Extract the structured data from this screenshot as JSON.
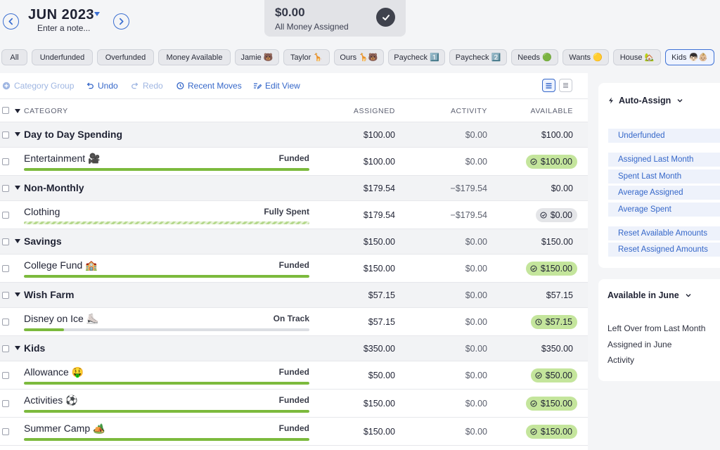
{
  "header": {
    "month_title": "JUN 2023",
    "note_placeholder": "Enter a note...",
    "assigned_amount": "$0.00",
    "assigned_label": "All Money Assigned"
  },
  "filters": [
    {
      "label": "All"
    },
    {
      "label": "Underfunded"
    },
    {
      "label": "Overfunded"
    },
    {
      "label": "Money Available"
    },
    {
      "label": "Jamie 🐻"
    },
    {
      "label": "Taylor 🦒"
    },
    {
      "label": "Ours 🦒🐻"
    },
    {
      "label": "Paycheck 1️⃣"
    },
    {
      "label": "Paycheck 2️⃣"
    },
    {
      "label": "Needs 🟢"
    },
    {
      "label": "Wants 🟡"
    },
    {
      "label": "House 🏡"
    },
    {
      "label": "Kids 👦🏻👶🏼"
    }
  ],
  "toolbar": {
    "category_group": "Category Group",
    "undo": "Undo",
    "redo": "Redo",
    "recent_moves": "Recent Moves",
    "edit_view": "Edit View"
  },
  "columns": {
    "category": "CATEGORY",
    "assigned": "ASSIGNED",
    "activity": "ACTIVITY",
    "available": "AVAILABLE"
  },
  "budget_rows": [
    {
      "type": "group",
      "name": "Day to Day Spending",
      "assigned": "$100.00",
      "activity": "$0.00",
      "available": "$100.00"
    },
    {
      "type": "category",
      "name": "Entertainment 🎥",
      "status": "Funded",
      "progress": 1.0,
      "assigned": "$100.00",
      "activity": "$0.00",
      "available": "$100.00",
      "pill": "green"
    },
    {
      "type": "group",
      "name": "Non-Monthly",
      "assigned": "$179.54",
      "activity": "−$179.54",
      "available": "$0.00"
    },
    {
      "type": "category",
      "name": "Clothing",
      "status": "Fully Spent",
      "progress": 1.0,
      "striped": true,
      "assigned": "$179.54",
      "activity": "−$179.54",
      "available": "$0.00",
      "pill": "gray"
    },
    {
      "type": "group",
      "name": "Savings",
      "assigned": "$150.00",
      "activity": "$0.00",
      "available": "$150.00"
    },
    {
      "type": "category",
      "name": "College Fund 🏫",
      "status": "Funded",
      "progress": 1.0,
      "assigned": "$150.00",
      "activity": "$0.00",
      "available": "$150.00",
      "pill": "green"
    },
    {
      "type": "group",
      "name": "Wish Farm",
      "assigned": "$57.15",
      "activity": "$0.00",
      "available": "$57.15"
    },
    {
      "type": "category",
      "name": "Disney on Ice ⛸️",
      "status": "On Track",
      "progress": 0.14,
      "assigned": "$57.15",
      "activity": "$0.00",
      "available": "$57.15",
      "pill": "green",
      "pill_icon": "clock"
    },
    {
      "type": "group",
      "name": "Kids",
      "assigned": "$350.00",
      "activity": "$0.00",
      "available": "$350.00"
    },
    {
      "type": "category",
      "name": "Allowance 🤑",
      "status": "Funded",
      "progress": 1.0,
      "assigned": "$50.00",
      "activity": "$0.00",
      "available": "$50.00",
      "pill": "green"
    },
    {
      "type": "category",
      "name": "Activities ⚽",
      "status": "Funded",
      "progress": 1.0,
      "assigned": "$150.00",
      "activity": "$0.00",
      "available": "$150.00",
      "pill": "green"
    },
    {
      "type": "category",
      "name": "Summer Camp 🏕️",
      "status": "Funded",
      "progress": 1.0,
      "assigned": "$150.00",
      "activity": "$0.00",
      "available": "$150.00",
      "pill": "green"
    }
  ],
  "auto_assign": {
    "title": "Auto-Assign",
    "options": [
      "Underfunded",
      "Assigned Last Month",
      "Spent Last Month",
      "Average Assigned",
      "Average Spent",
      "Reset Available Amounts",
      "Reset Assigned Amounts"
    ]
  },
  "available_panel": {
    "title": "Available in June",
    "lines": [
      "Left Over from Last Month",
      "Assigned in June",
      "Activity"
    ]
  },
  "colors": {
    "accent": "#3567c9",
    "funded_green": "#7cba3d",
    "pill_green": "#c4e59c",
    "pill_gray": "#e4e5e8"
  }
}
